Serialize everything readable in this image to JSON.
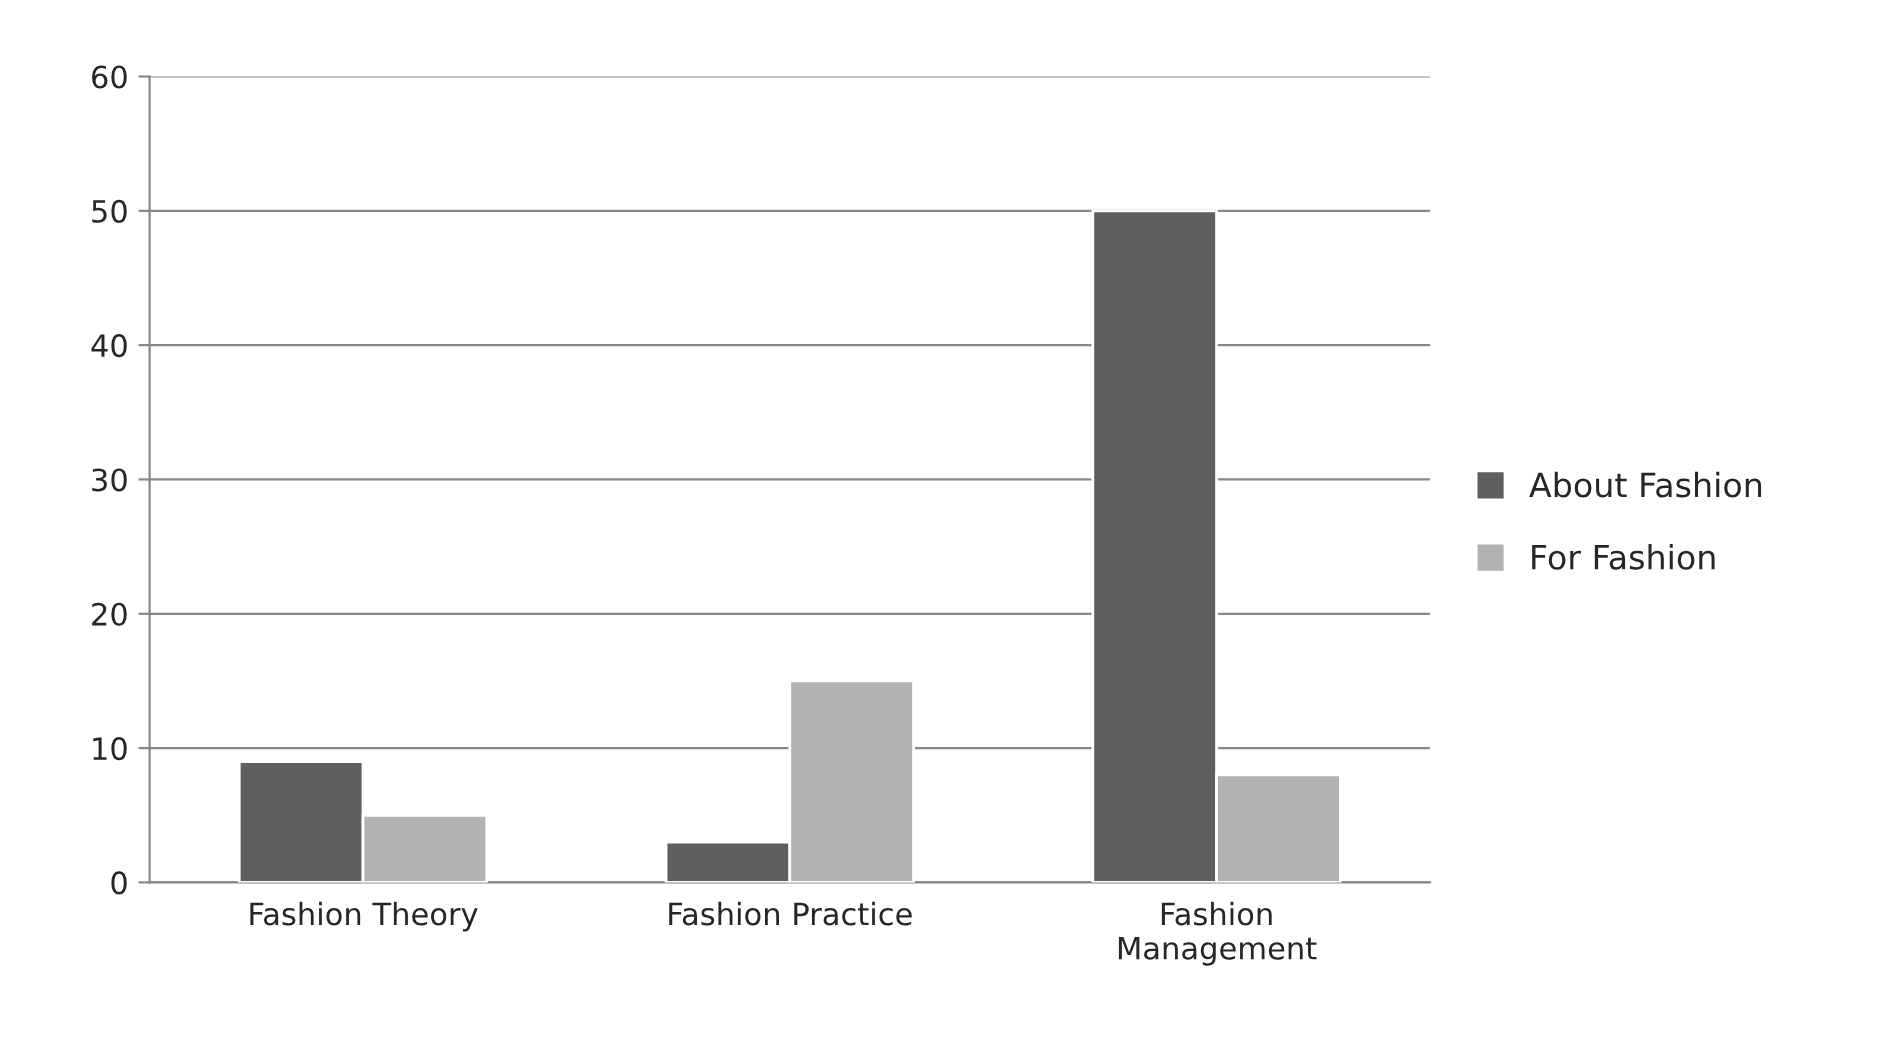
{
  "chart_data": {
    "type": "bar",
    "categories": [
      "Fashion Theory",
      "Fashion Practice",
      "Fashion\nManagement"
    ],
    "series": [
      {
        "name": "About Fashion",
        "color": "#5f5f5f",
        "values": [
          9,
          3,
          50
        ]
      },
      {
        "name": "For Fashion",
        "color": "#b2b2b2",
        "values": [
          5,
          15,
          8
        ]
      }
    ],
    "ylim": [
      0,
      60
    ],
    "yticks": [
      0,
      10,
      20,
      30,
      40,
      50,
      60
    ],
    "grid": "y",
    "legend": "right"
  }
}
